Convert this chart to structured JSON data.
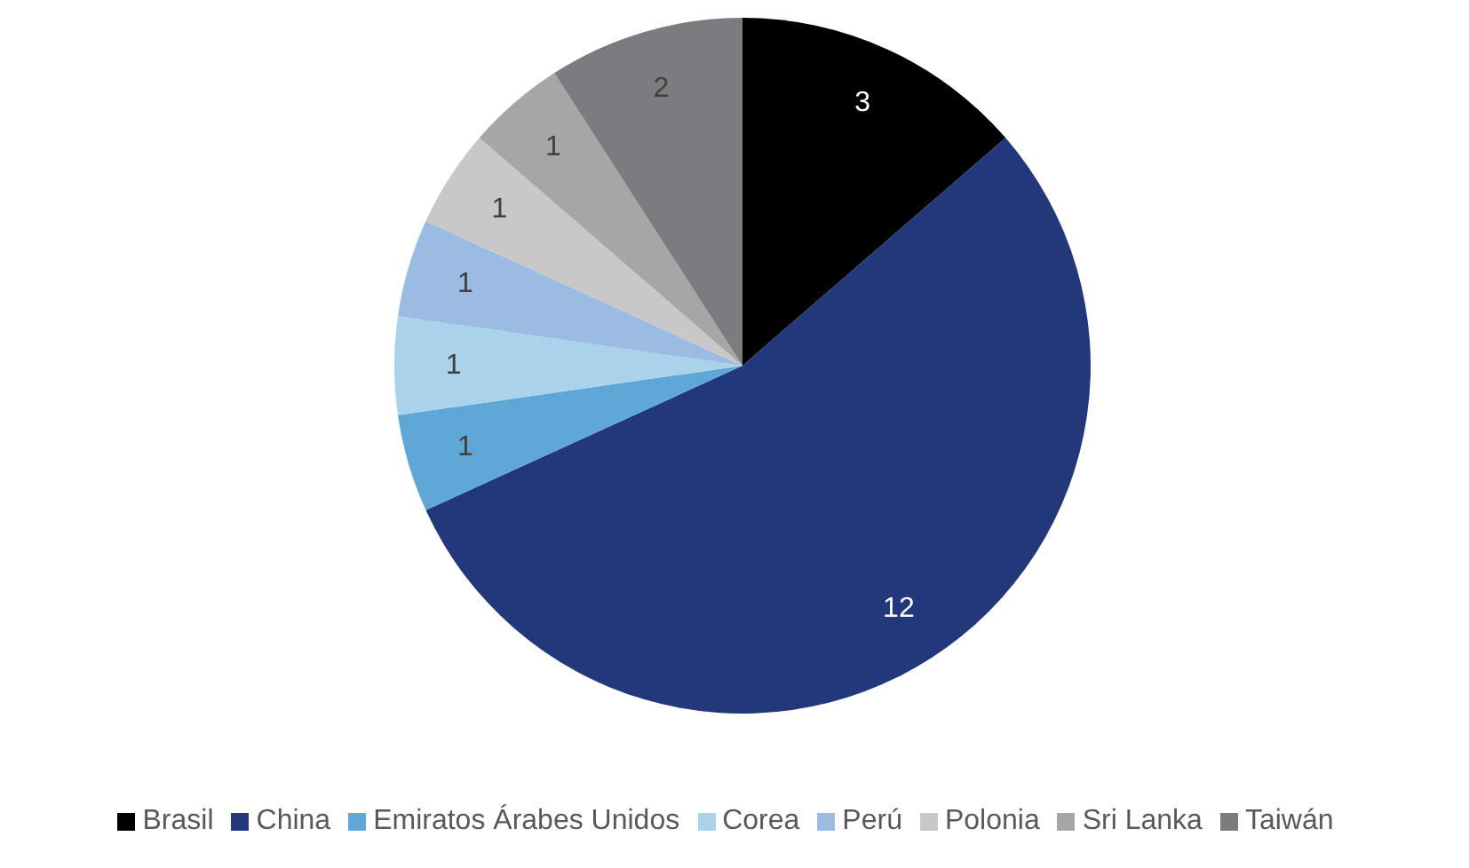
{
  "chart_data": {
    "type": "pie",
    "categories": [
      "Brasil",
      "China",
      "Emiratos Árabes Unidos",
      "Corea",
      "Perú",
      "Polonia",
      "Sri Lanka",
      "Taiwán"
    ],
    "values": [
      3,
      12,
      1,
      1,
      1,
      1,
      1,
      2
    ],
    "colors": [
      "#000000",
      "#22387a",
      "#5ea7d6",
      "#a9d3ea",
      "#9bbbe3",
      "#c8c8c8",
      "#a6a6a6",
      "#7b7b80"
    ],
    "data_labels": true,
    "legend": "bottom"
  }
}
